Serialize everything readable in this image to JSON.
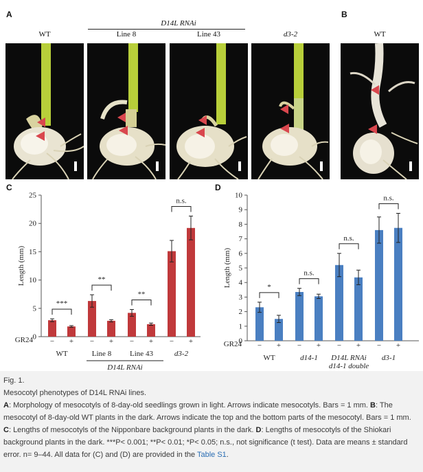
{
  "panels": {
    "A": {
      "label": "A",
      "group_label": "D14L RNAi",
      "headers": [
        "WT",
        "Line 8",
        "Line 43",
        "d3-2"
      ]
    },
    "B": {
      "label": "B",
      "headers": [
        "WT"
      ]
    }
  },
  "colors": {
    "red_bars": "#c0393b",
    "blue_bars": "#4a7fc1",
    "arrow": "#d9474e",
    "caption_link": "#2a6db3"
  },
  "chart_data": [
    {
      "panel": "C",
      "type": "bar",
      "ylabel": "Length (mm)",
      "ylim": [
        0,
        25
      ],
      "yticks": [
        0,
        5,
        10,
        15,
        20,
        25
      ],
      "treatment_label": "GR24",
      "treatment_signs": [
        "−",
        "+"
      ],
      "groups": [
        "WT",
        "Line 8",
        "Line 43",
        "d3-2"
      ],
      "group_caption": "D14L RNAi",
      "values": [
        2.9,
        1.8,
        6.3,
        2.8,
        4.2,
        2.2,
        15.1,
        19.2
      ],
      "errors": [
        0.25,
        0.15,
        1.1,
        0.2,
        0.6,
        0.2,
        1.9,
        2.1
      ],
      "significance": [
        "***",
        "**",
        "**",
        "n.s."
      ],
      "color": "#c0393b"
    },
    {
      "panel": "D",
      "type": "bar",
      "ylabel": "Length (mm)",
      "ylim": [
        0,
        10
      ],
      "yticks": [
        0,
        1,
        2,
        3,
        4,
        5,
        6,
        7,
        8,
        9,
        10
      ],
      "treatment_label": "GR24",
      "treatment_signs": [
        "−",
        "+"
      ],
      "groups": [
        "WT",
        "d14-1",
        "D14L RNAi",
        "d3-1"
      ],
      "group_sub": [
        "",
        "",
        "d14-1 double",
        ""
      ],
      "values": [
        2.3,
        1.5,
        3.35,
        3.05,
        5.2,
        4.35,
        7.6,
        7.75
      ],
      "errors": [
        0.35,
        0.25,
        0.25,
        0.15,
        0.8,
        0.5,
        0.9,
        1.0
      ],
      "significance": [
        "*",
        "n.s.",
        "n.s.",
        "n.s."
      ],
      "color": "#4a7fc1"
    }
  ],
  "caption": {
    "fig": "Fig. 1.",
    "title": "Mesocotyl phenotypes of D14L RNAi lines.",
    "body": [
      {
        "label": "A",
        "text": ": Morphology of mesocotyls of 8-day-old seedlings grown in light. Arrows indicate mesocotyls. Bars = 1 mm. "
      },
      {
        "label": "B",
        "text": ": The mesocotyl of 8-day-old WT plants in the dark. Arrows indicate the top and the bottom parts of the mesocotyl. Bars = 1 mm. "
      },
      {
        "label": "C",
        "text": ": Lengths of mesocotyls of the Nipponbare background plants in the dark. "
      },
      {
        "label": "D",
        "text": ": Lengths of mesocotyls of the Shiokari background plants in the dark. ***P< 0.001; **P< 0.01; *P< 0.05; n.s., not significance (t test). Data are means ± standard error. n= 9–44. All data for (C) and (D) are provided in the "
      }
    ],
    "link": "Table S1",
    "end": "."
  }
}
